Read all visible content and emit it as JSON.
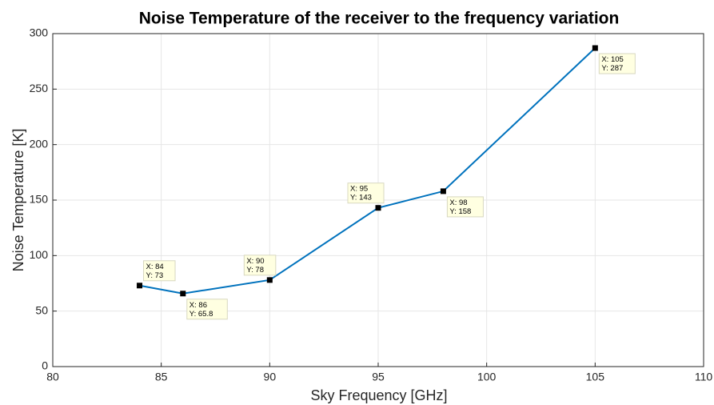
{
  "chart_data": {
    "type": "line",
    "title": "Noise Temperature of the receiver to the frequency variation",
    "x_label": "Sky Frequency [GHz]",
    "y_label": "Noise Temperature [K]",
    "x": [
      84,
      86,
      90,
      95,
      98,
      105
    ],
    "series": [
      {
        "color": "#0072bd",
        "values": [
          73,
          65.8,
          78,
          143,
          158,
          287
        ],
        "x_value_labels": [
          "X: 84",
          "X: 86",
          "X: 90",
          "X: 95",
          "X: 98",
          "X: 105"
        ],
        "value_labels": [
          "Y: 73",
          "Y: 65.8",
          "Y: 78",
          "Y: 143",
          "Y: 158",
          "Y: 287"
        ]
      }
    ],
    "xlim": [
      80,
      110
    ],
    "xticks": [
      80,
      85,
      90,
      95,
      100,
      105,
      110
    ],
    "ylim": [
      0,
      300
    ],
    "yticks": [
      0,
      50,
      100,
      150,
      200,
      250,
      300
    ],
    "grid": true
  }
}
